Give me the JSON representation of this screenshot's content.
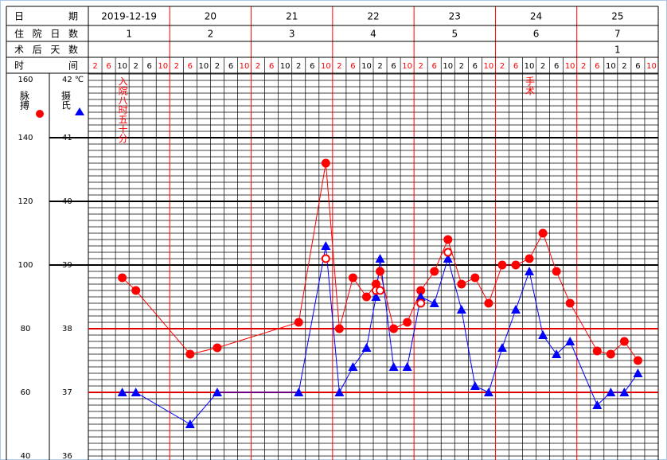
{
  "chart_data": {
    "type": "line",
    "header": {
      "date_label": "日期",
      "dates": [
        "2019-12-19",
        "20",
        "21",
        "22",
        "23",
        "24",
        "25"
      ],
      "stay_label": "住院日数",
      "stay_days": [
        1,
        2,
        3,
        4,
        5,
        6,
        7
      ],
      "postop_label": "术后天数",
      "postop_days": [
        null,
        null,
        null,
        null,
        null,
        null,
        1
      ],
      "time_label": "时间",
      "time_slots": [
        2,
        6,
        10,
        2,
        6,
        10
      ]
    },
    "xlim": [
      -0.5,
      41.5
    ],
    "ylim": [
      40,
      160
    ],
    "yticks": [
      40,
      60,
      80,
      100,
      120,
      140,
      160
    ],
    "y2lim": [
      36,
      42
    ],
    "y2ticks": [
      36,
      37,
      38,
      39,
      40,
      41,
      {
        "value": 42,
        "label": "42 ℃"
      }
    ],
    "reference_lines": {
      "axis": "y2",
      "values": [
        37,
        38
      ],
      "color": "#e00000"
    },
    "series": [
      {
        "name": "脉搏",
        "color": "#ff0000",
        "marker": "circle",
        "x": [
          2,
          3,
          7,
          9,
          15,
          17,
          18,
          19,
          20,
          20.7,
          21,
          22,
          23,
          24,
          25,
          26,
          27,
          28,
          29,
          30,
          31,
          32,
          33,
          34,
          35,
          37,
          38,
          39,
          40
        ],
        "values": [
          96,
          92,
          72,
          74,
          82,
          132,
          80,
          96,
          90,
          94,
          98,
          80,
          82,
          92,
          98,
          108,
          94,
          96,
          88,
          100,
          100,
          102,
          110,
          98,
          88,
          73,
          72,
          76,
          70
        ]
      },
      {
        "name": "摄氏",
        "color": "#0000ff",
        "marker": "triangle",
        "axis": "y2",
        "x": [
          2,
          3,
          7,
          9,
          15,
          17,
          18,
          19,
          20,
          20.7,
          21,
          22,
          23,
          24,
          25,
          26,
          27,
          28,
          29,
          30,
          31,
          32,
          33,
          34,
          35,
          37,
          38,
          39,
          40
        ],
        "values": [
          37.0,
          37.0,
          36.5,
          37.0,
          37.0,
          39.3,
          37.0,
          37.4,
          37.7,
          38.5,
          39.1,
          37.4,
          37.4,
          38.5,
          38.4,
          39.1,
          38.3,
          37.1,
          37.0,
          37.7,
          38.3,
          38.9,
          37.9,
          37.6,
          37.8,
          36.8,
          37.0,
          37.0,
          37.3
        ]
      },
      {
        "color": "#ff0000",
        "marker": "hollow",
        "axis": "y2",
        "x": [
          17,
          20.7,
          21,
          24,
          26
        ],
        "values": [
          39.1,
          38.6,
          38.6,
          38.4,
          39.2
        ]
      }
    ],
    "annotations": [
      {
        "text": "入院八时五十分",
        "x": 2
      },
      {
        "text": "手术",
        "x": 32
      }
    ]
  }
}
